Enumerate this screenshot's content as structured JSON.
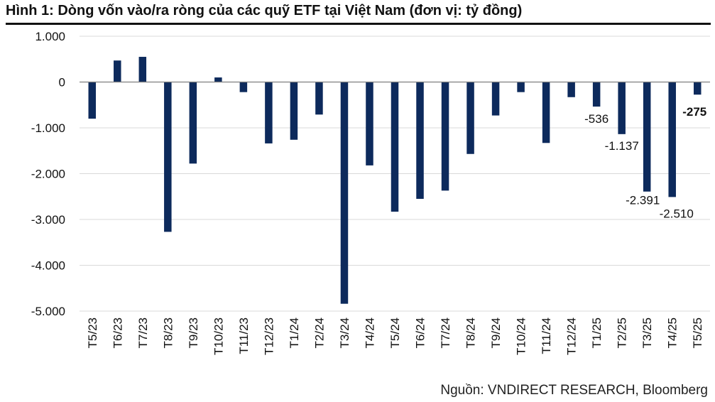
{
  "title": "Hình 1: Dòng vốn vào/ra ròng của các quỹ ETF tại Việt Nam (đơn vị: tỷ đồng)",
  "source": "Nguồn: VNDIRECT RESEARCH, Bloomberg",
  "colors": {
    "bar": "#0d2a5c",
    "grid": "#d9d9d9",
    "axis": "#7f7f7f"
  },
  "chart_data": {
    "type": "bar",
    "title": "Hình 1: Dòng vốn vào/ra ròng của các quỹ ETF tại Việt Nam (đơn vị: tỷ đồng)",
    "xlabel": "",
    "ylabel": "",
    "ylim": [
      -5000,
      1000
    ],
    "yticks": [
      1000,
      0,
      -1000,
      -2000,
      -3000,
      -4000,
      -5000
    ],
    "ytick_labels": [
      "1.000",
      "0",
      "-1.000",
      "-2.000",
      "-3.000",
      "-4.000",
      "-5.000"
    ],
    "grid": true,
    "categories": [
      "T5/23",
      "T6/23",
      "T7/23",
      "T8/23",
      "T9/23",
      "T10/23",
      "T11/23",
      "T12/23",
      "T1/24",
      "T2/24",
      "T3/24",
      "T4/24",
      "T5/24",
      "T6/24",
      "T7/24",
      "T8/24",
      "T9/24",
      "T10/24",
      "T11/24",
      "T12/24",
      "T1/25",
      "T2/25",
      "T3/25",
      "T4/25",
      "T5/25"
    ],
    "values": [
      -800,
      470,
      550,
      -3270,
      -1780,
      100,
      -220,
      -1340,
      -1260,
      -710,
      -4840,
      -1820,
      -2830,
      -2550,
      -2370,
      -1570,
      -730,
      -220,
      -1330,
      -330,
      -536,
      -1137,
      -2391,
      -2510,
      -275
    ],
    "data_labels": [
      {
        "category": "T1/25",
        "text": "-536",
        "bold": false
      },
      {
        "category": "T2/25",
        "text": "-1.137",
        "bold": false
      },
      {
        "category": "T3/25",
        "text": "-2.391",
        "bold": false
      },
      {
        "category": "T4/25",
        "text": "-2.510",
        "bold": false
      },
      {
        "category": "T5/25",
        "text": "-275",
        "bold": true
      }
    ]
  }
}
